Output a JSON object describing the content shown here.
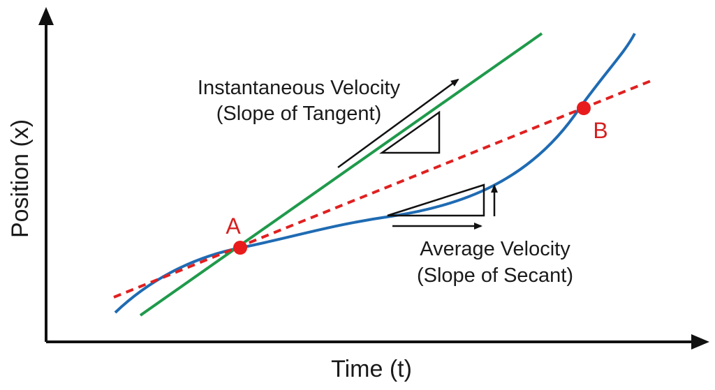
{
  "axes": {
    "x_label": "Time (t)",
    "y_label": "Position (x)"
  },
  "curve": {
    "name": "position-curve",
    "color": "#1f6bb3"
  },
  "tangent": {
    "color": "#1f9a4b",
    "label_line1": "Instantaneous Velocity",
    "label_line2": "(Slope of Tangent)"
  },
  "secant": {
    "color": "#e02020",
    "style": "dashed",
    "label_line1": "Average Velocity",
    "label_line2": "(Slope of Secant)"
  },
  "points": {
    "A": {
      "label": "A",
      "color": "#e81c1c"
    },
    "B": {
      "label": "B",
      "color": "#e81c1c"
    }
  },
  "colors": {
    "axis": "#111111",
    "arrow": "#111111"
  }
}
